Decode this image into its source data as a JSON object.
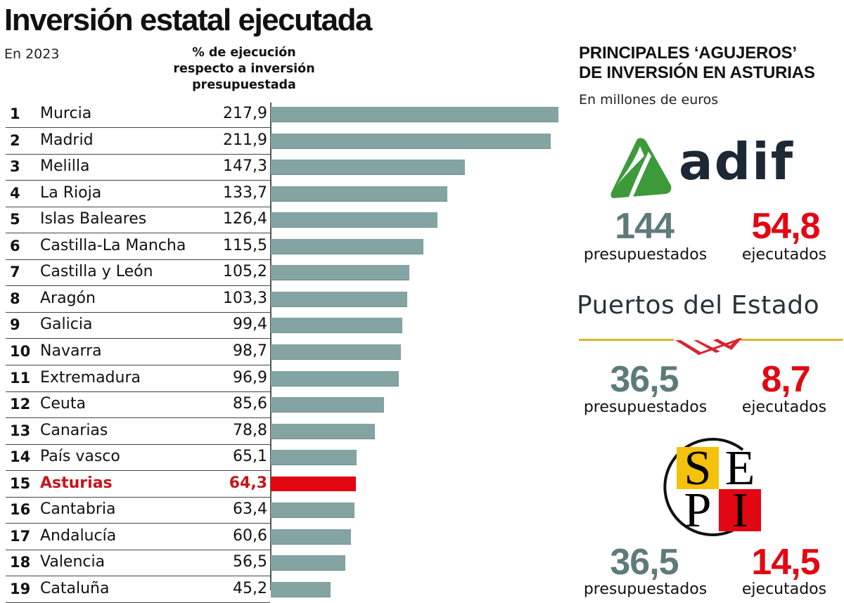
{
  "header": {
    "title": "Inversión estatal ejecutada",
    "subtitle": "En 2023",
    "column_header": [
      "% de ejecución",
      "respecto a inversión",
      "presupuestada"
    ]
  },
  "chart_data": {
    "type": "bar",
    "orientation": "horizontal",
    "title": "Inversión estatal ejecutada",
    "subtitle": "En 2023",
    "xlabel": "% de ejecución respecto a inversión presupuestada",
    "ylabel": "",
    "xlim": [
      0,
      217.9
    ],
    "grid": false,
    "highlight": "Asturias",
    "colors": {
      "default": "#84a3a3",
      "highlight": "#e30613"
    },
    "categories": [
      "Murcia",
      "Madrid",
      "Melilla",
      "La Rioja",
      "Islas Baleares",
      "Castilla-La Mancha",
      "Castilla y León",
      "Aragón",
      "Galicia",
      "Navarra",
      "Extremadura",
      "Ceuta",
      "Canarias",
      "País vasco",
      "Asturias",
      "Cantabria",
      "Andalucía",
      "Valencia",
      "Cataluña"
    ],
    "ranks": [
      1,
      2,
      3,
      4,
      5,
      6,
      7,
      8,
      9,
      10,
      11,
      12,
      13,
      14,
      15,
      16,
      17,
      18,
      19
    ],
    "values": [
      217.9,
      211.9,
      147.3,
      133.7,
      126.4,
      115.5,
      105.2,
      103.3,
      99.4,
      98.7,
      96.9,
      85.6,
      78.8,
      65.1,
      64.3,
      63.4,
      60.6,
      56.5,
      45.2
    ],
    "value_labels": [
      "217,9",
      "211,9",
      "147,3",
      "133,7",
      "126,4",
      "115,5",
      "105,2",
      "103,3",
      "99,4",
      "98,7",
      "96,9",
      "85,6",
      "78,8",
      "65,1",
      "64,3",
      "63,4",
      "60,6",
      "56,5",
      "45,2"
    ]
  },
  "side_panel": {
    "title_lines": [
      "PRINCIPALES ‘AGUJEROS’",
      "DE INVERSIÓN EN ASTURIAS"
    ],
    "subtitle": "En millones de euros",
    "entities": [
      {
        "name": "adif",
        "logo_text": "adif",
        "budgeted": "144",
        "executed": "54,8",
        "budgeted_label": "presupuestados",
        "executed_label": "ejecutados"
      },
      {
        "name": "Puertos del Estado",
        "logo_text": "Puertos del Estado",
        "budgeted": "36,5",
        "executed": "8,7",
        "budgeted_label": "presupuestados",
        "executed_label": "ejecutados"
      },
      {
        "name": "SEPI",
        "logo_letters": [
          "S",
          "E",
          "P",
          "I"
        ],
        "budgeted": "36,5",
        "executed": "14,5",
        "budgeted_label": "presupuestados",
        "executed_label": "ejecutados"
      }
    ],
    "colors": {
      "budgeted": "#5e7b7b",
      "executed": "#e30613"
    }
  }
}
